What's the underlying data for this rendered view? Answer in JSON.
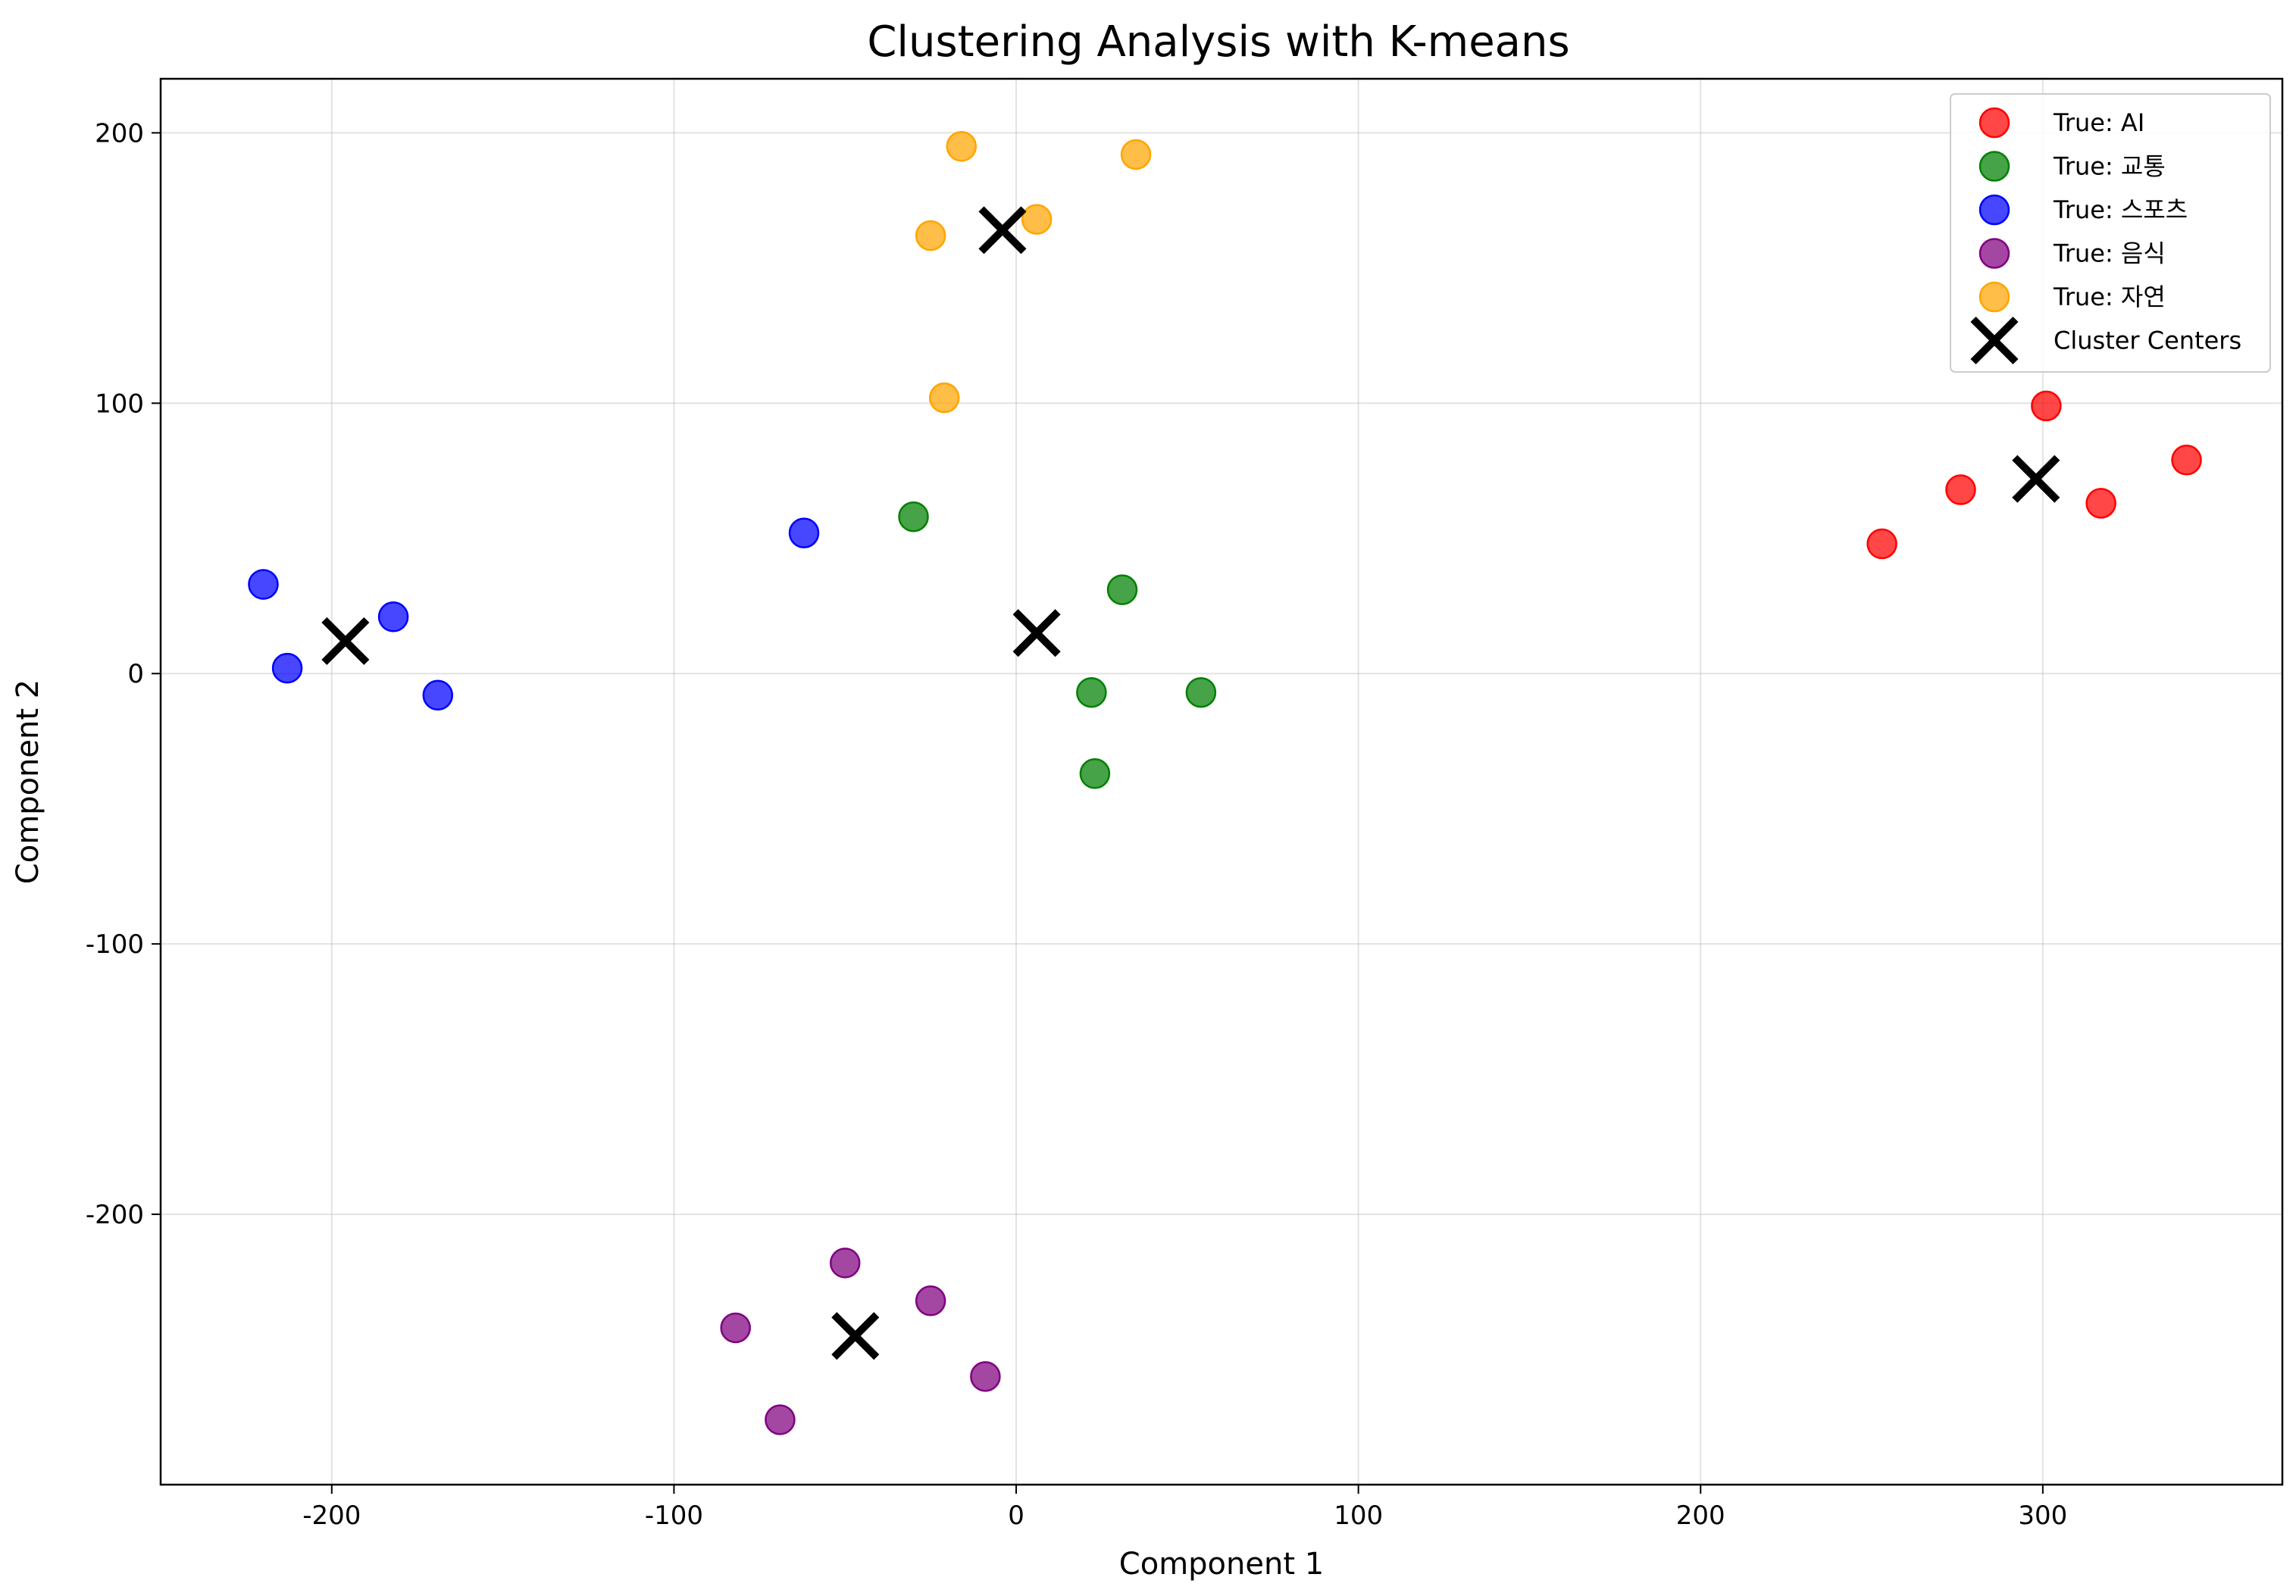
{
  "chart_data": {
    "type": "scatter",
    "title": "Clustering Analysis with K-means",
    "xlabel": "Component 1",
    "ylabel": "Component 2",
    "xlim": [
      -250,
      370
    ],
    "ylim": [
      -300,
      220
    ],
    "xticks": [
      -200,
      -100,
      0,
      100,
      200,
      300
    ],
    "yticks": [
      -200,
      -100,
      0,
      100,
      200
    ],
    "xtick_labels": [
      "-200",
      "-100",
      "0",
      "100",
      "200",
      "300"
    ],
    "ytick_labels": [
      "-200",
      "-100",
      "0",
      "100",
      "200"
    ],
    "grid": true,
    "legend_position": "top-right",
    "series": [
      {
        "name": "True: AI",
        "color": "#ff0000",
        "marker": "circle",
        "points": [
          [
            253,
            48
          ],
          [
            276,
            68
          ],
          [
            301,
            99
          ],
          [
            317,
            63
          ],
          [
            342,
            79
          ]
        ]
      },
      {
        "name": "True: 교통",
        "color": "#008000",
        "marker": "circle",
        "points": [
          [
            -30,
            58
          ],
          [
            31,
            31
          ],
          [
            22,
            -7
          ],
          [
            54,
            -7
          ],
          [
            23,
            -37
          ]
        ]
      },
      {
        "name": "True: 스포츠",
        "color": "#0000ff",
        "marker": "circle",
        "points": [
          [
            -220,
            33
          ],
          [
            -182,
            21
          ],
          [
            -213,
            2
          ],
          [
            -169,
            -8
          ],
          [
            -62,
            52
          ]
        ]
      },
      {
        "name": "True: 음식",
        "color": "#800080",
        "marker": "circle",
        "points": [
          [
            -50,
            -218
          ],
          [
            -82,
            -242
          ],
          [
            -25,
            -232
          ],
          [
            -69,
            -276
          ],
          [
            -9,
            -260
          ]
        ]
      },
      {
        "name": "True: 자연",
        "color": "#ffa500",
        "marker": "circle",
        "points": [
          [
            -16,
            195
          ],
          [
            35,
            192
          ],
          [
            6,
            168
          ],
          [
            -25,
            162
          ],
          [
            -21,
            102
          ]
        ]
      },
      {
        "name": "Cluster Centers",
        "color": "#000000",
        "marker": "x",
        "points": [
          [
            -196,
            12
          ],
          [
            -4,
            164
          ],
          [
            6,
            15
          ],
          [
            298,
            72
          ],
          [
            -47,
            -245
          ]
        ]
      }
    ]
  }
}
